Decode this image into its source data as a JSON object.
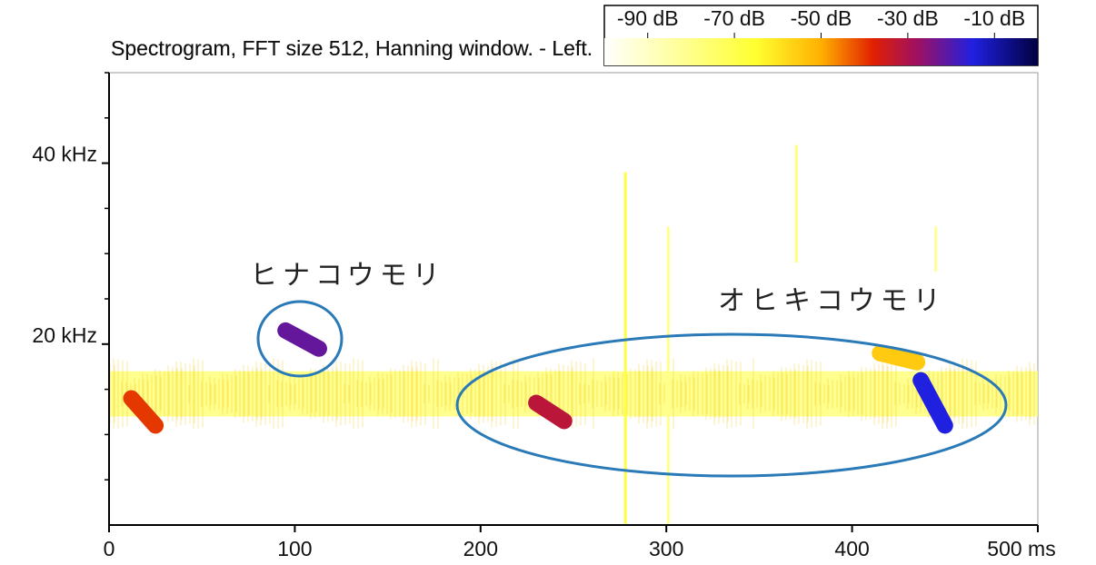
{
  "chart_data": {
    "type": "spectrogram",
    "title": "Spectrogram, FFT size 512, Hanning window. - Left.",
    "xlim": [
      0,
      500
    ],
    "xticks": [
      0,
      100,
      200,
      300,
      400,
      {
        "value": 500,
        "label": "500 ms"
      }
    ],
    "ylim": [
      0,
      50
    ],
    "yticks": [
      {
        "value": 20,
        "label": "20 kHz"
      },
      {
        "value": 40,
        "label": "40 kHz"
      }
    ],
    "yminorticks": [
      5,
      10,
      15,
      25,
      30,
      35,
      45,
      50
    ],
    "clim": [
      -100,
      0
    ],
    "cticks": [
      {
        "value": -90,
        "label": "-90 dB"
      },
      {
        "value": -70,
        "label": "-70 dB"
      },
      {
        "value": -50,
        "label": "-50 dB"
      },
      {
        "value": -30,
        "label": "-30 dB"
      },
      {
        "value": -10,
        "label": "-10 dB"
      }
    ],
    "colormap": [
      {
        "value": -100,
        "color": "#ffffff"
      },
      {
        "value": -65,
        "color": "#ffff30"
      },
      {
        "value": -50,
        "color": "#ffb000"
      },
      {
        "value": -38,
        "color": "#e02000"
      },
      {
        "value": -28,
        "color": "#a01060"
      },
      {
        "value": -15,
        "color": "#2020e0"
      },
      {
        "value": 0,
        "color": "#000040"
      }
    ],
    "noise_band": {
      "x": [
        0,
        500
      ],
      "y": [
        17,
        12
      ],
      "level": -75
    },
    "segments": [
      {
        "x": [
          12,
          25
        ],
        "y": [
          14,
          11
        ],
        "level": -40
      },
      {
        "x": [
          95,
          113
        ],
        "y": [
          21.5,
          19.5
        ],
        "level": -22
      },
      {
        "x": [
          230,
          245
        ],
        "y": [
          13.5,
          11.5
        ],
        "level": -32
      },
      {
        "x": [
          415,
          435
        ],
        "y": [
          19,
          18
        ],
        "level": -55
      },
      {
        "x": [
          437,
          450
        ],
        "y": [
          16,
          11
        ],
        "level": -15
      },
      {
        "x": [
          278,
          278
        ],
        "y": [
          0,
          39
        ],
        "level": -68
      },
      {
        "x": [
          301,
          301
        ],
        "y": [
          0,
          33
        ],
        "level": -80
      },
      {
        "x": [
          370,
          370
        ],
        "y": [
          29,
          42
        ],
        "level": -78
      },
      {
        "x": [
          445,
          445
        ],
        "y": [
          28,
          33
        ],
        "level": -82
      }
    ],
    "annotations": [
      "ヒナコウモリ",
      "オヒキコウモリ"
    ]
  }
}
